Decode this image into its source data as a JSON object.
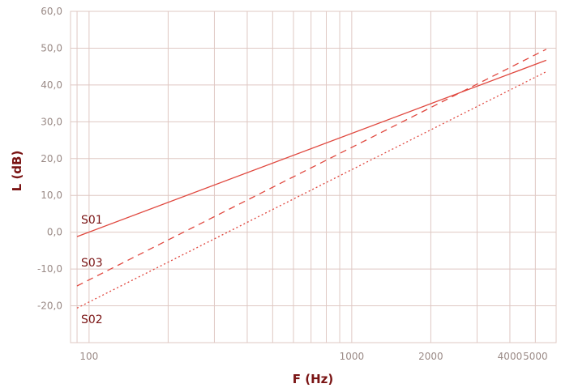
{
  "chart_data": {
    "type": "line",
    "xlabel": "F (Hz)",
    "ylabel": "L (dB)",
    "x_scale": "log",
    "xlim": [
      85,
      6000
    ],
    "ylim": [
      -30,
      60
    ],
    "y_ticks": [
      -20,
      -10,
      0,
      10,
      20,
      30,
      40,
      50,
      60
    ],
    "y_tick_labels": [
      "-20,0",
      "-10,0",
      "0,0",
      "10,0",
      "20,0",
      "30,0",
      "40,0",
      "50,0",
      "60,0"
    ],
    "x_tick_labels": [
      {
        "value": 100,
        "label": "100"
      },
      {
        "value": 1000,
        "label": "1000"
      },
      {
        "value": 2000,
        "label": "2000"
      },
      {
        "value": 4000,
        "label": "4000"
      },
      {
        "value": 5000,
        "label": "5000"
      }
    ],
    "x_gridlines": [
      90,
      100,
      200,
      300,
      400,
      500,
      600,
      700,
      800,
      900,
      1000,
      2000,
      3000,
      4000,
      5000,
      6000
    ],
    "grid": true,
    "series_color": "#e0483f",
    "grid_color": "#dfc8c3",
    "series": [
      {
        "name": "S01",
        "style": "solid",
        "x": [
          90,
          5500
        ],
        "y": [
          -1.2,
          46.7
        ]
      },
      {
        "name": "S03",
        "style": "dashed",
        "x": [
          90,
          5500
        ],
        "y": [
          -14.6,
          49.7
        ]
      },
      {
        "name": "S02",
        "style": "dotted",
        "x": [
          90,
          5500
        ],
        "y": [
          -20.6,
          43.6
        ]
      }
    ],
    "legend": "inline labels near left end of each line"
  }
}
